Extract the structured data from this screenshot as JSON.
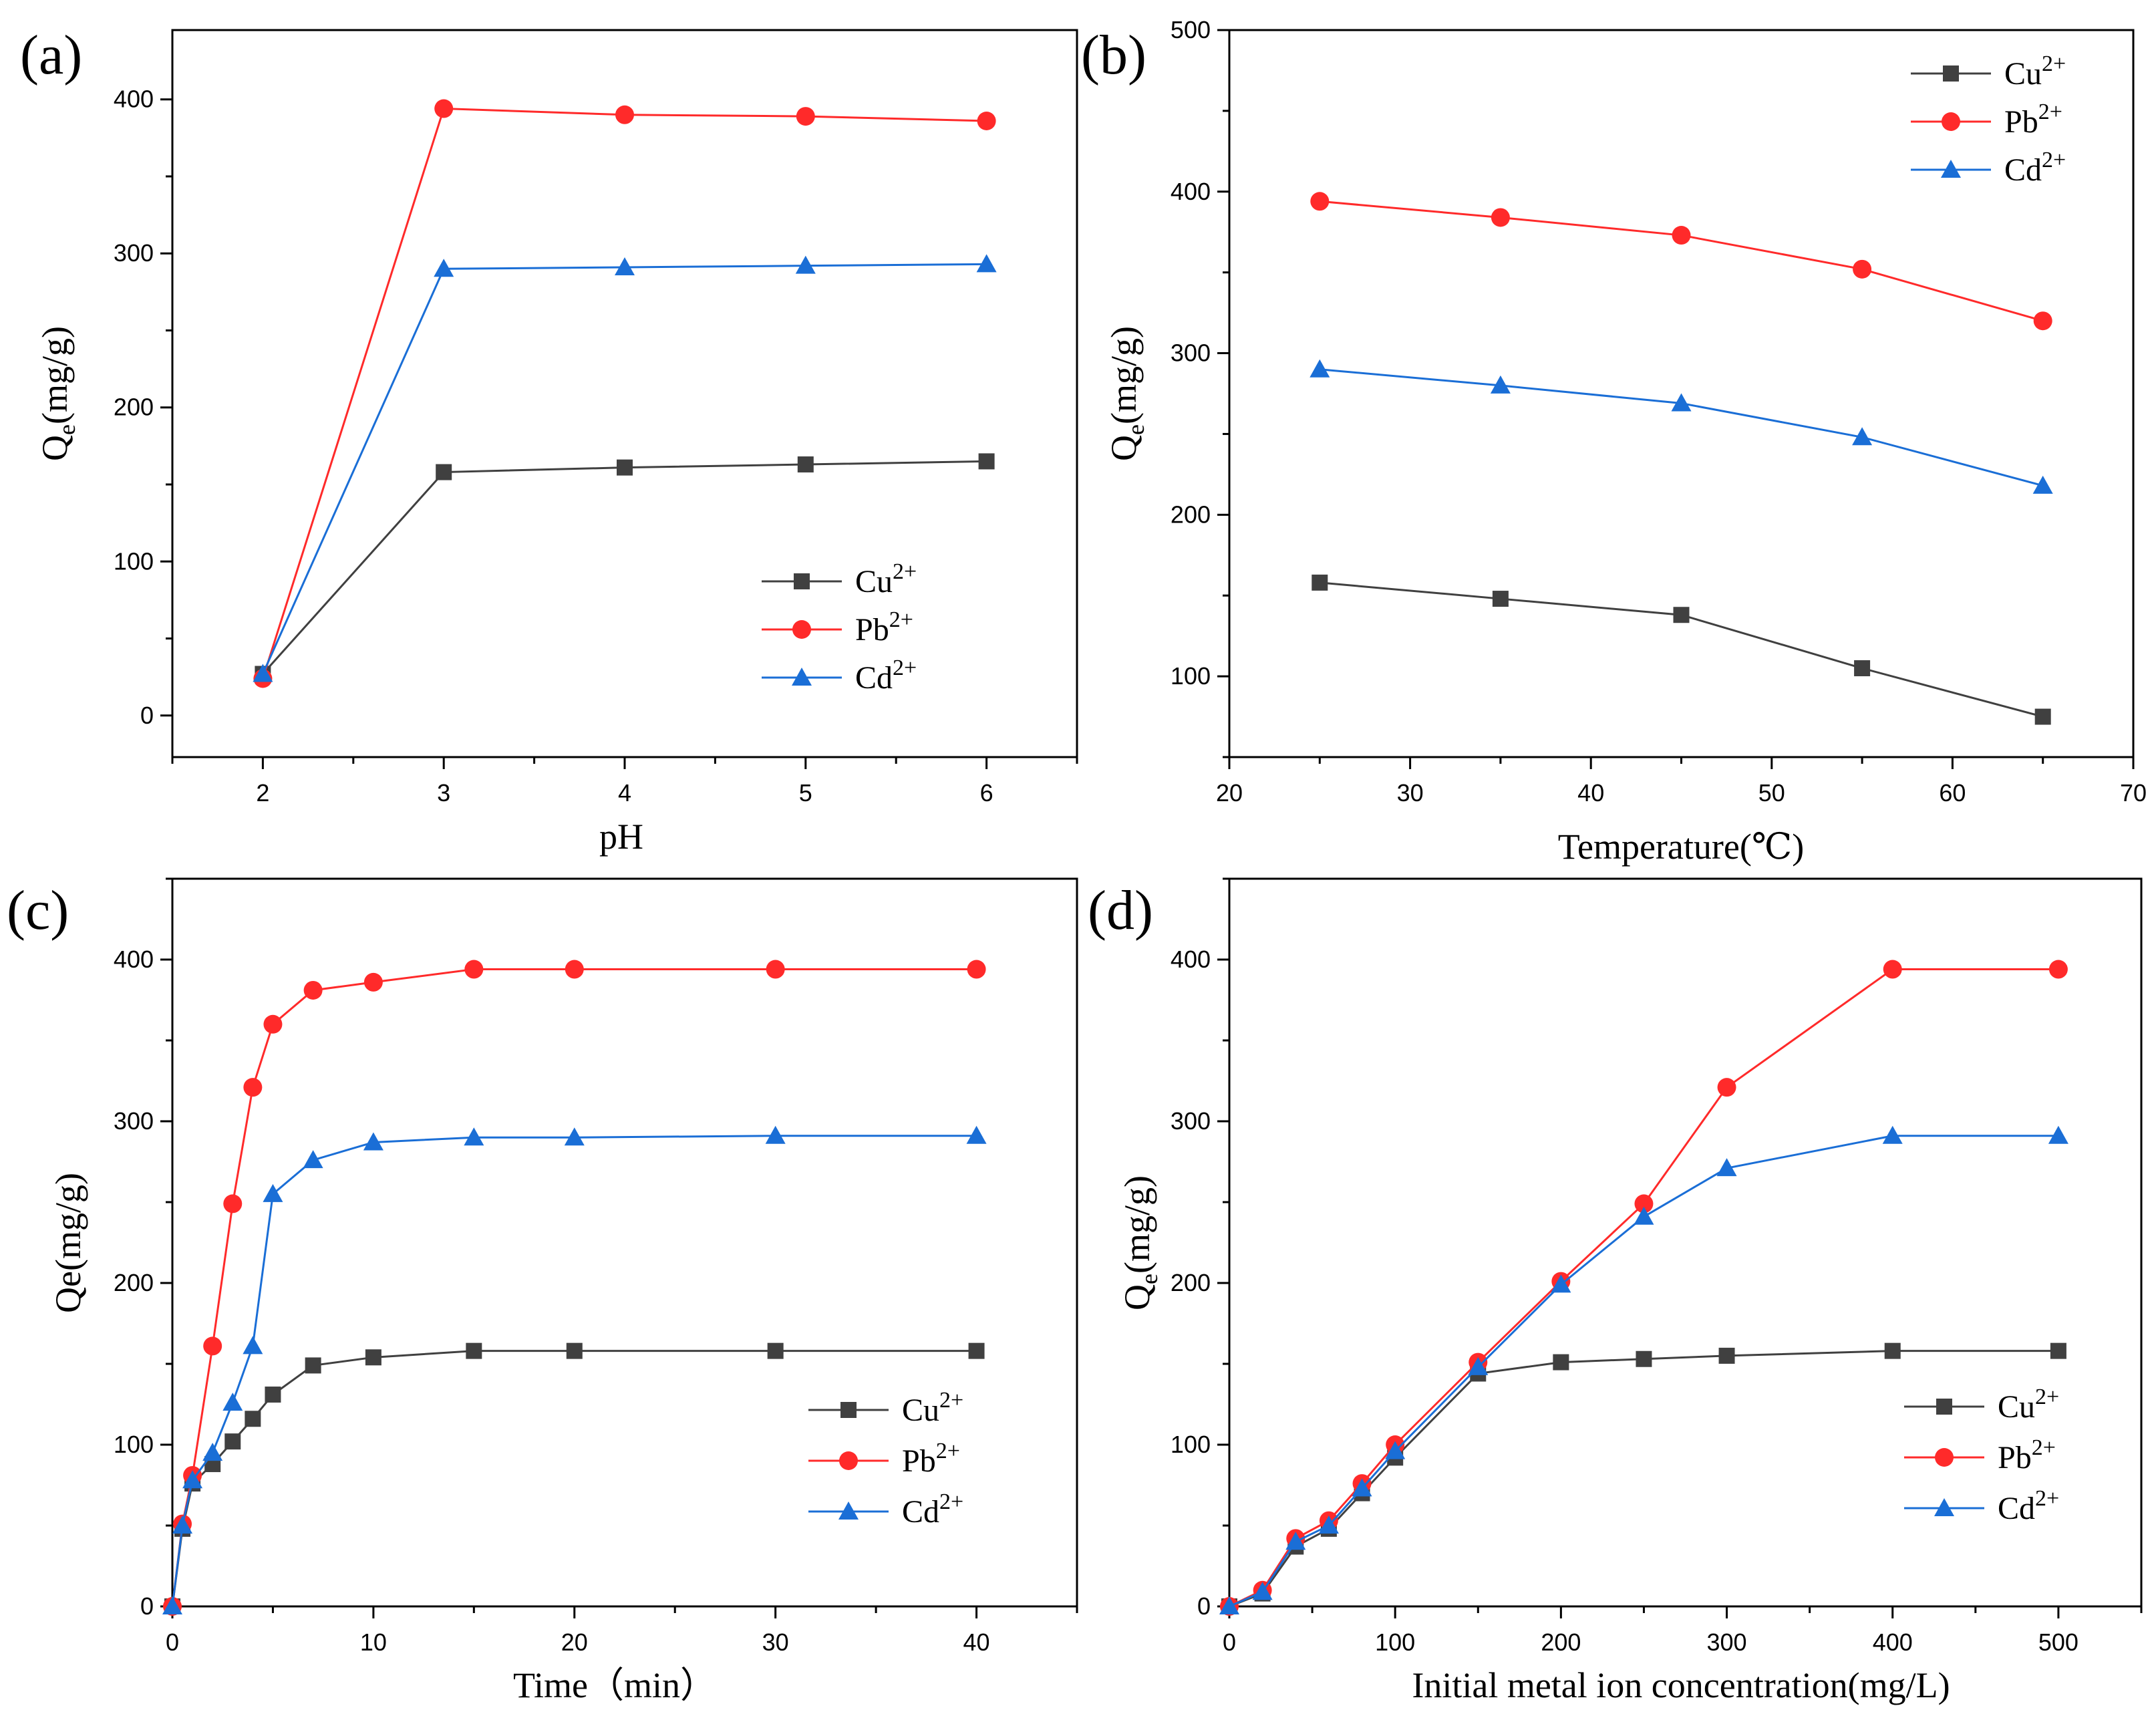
{
  "chart_data": [
    {
      "type": "line",
      "panel": "(a)",
      "xlabel": "pH",
      "ylabel": "Q_e(mg/g)",
      "ylabel_main": "Q",
      "ylabel_sub": "e",
      "ylabel_rest": "(mg/g)",
      "xlim": [
        1.5,
        6.5
      ],
      "ylim": [
        -27,
        445
      ],
      "xticks": [
        2,
        3,
        4,
        5,
        6
      ],
      "xticks_labels": [
        "2",
        "3",
        "4",
        "5",
        "6"
      ],
      "yticks": [
        0,
        100,
        200,
        300,
        400
      ],
      "yticks_labels": [
        "0",
        "100",
        "200",
        "300",
        "400"
      ],
      "legend_position": "bottom-right",
      "x": [
        2,
        3,
        4,
        5,
        6
      ],
      "series": [
        {
          "name": "Cu",
          "sup": "2+",
          "color": "#404040",
          "marker": "square",
          "values": [
            27,
            158,
            161,
            163,
            165
          ]
        },
        {
          "name": "Pb",
          "sup": "2+",
          "color": "#ff2a2a",
          "marker": "circle",
          "values": [
            24,
            394,
            390,
            389,
            386
          ]
        },
        {
          "name": "Cd",
          "sup": "2+",
          "color": "#1a6ed6",
          "marker": "triangle",
          "values": [
            27,
            290,
            291,
            292,
            293
          ]
        }
      ]
    },
    {
      "type": "line",
      "panel": "(b)",
      "xlabel": "Temperature(℃)",
      "ylabel": "Q_e(mg/g)",
      "ylabel_main": "Q",
      "ylabel_sub": "e",
      "ylabel_rest": "(mg/g)",
      "xlim": [
        20,
        70
      ],
      "ylim": [
        50,
        500
      ],
      "xticks": [
        20,
        30,
        40,
        50,
        60,
        70
      ],
      "xticks_labels": [
        "20",
        "30",
        "40",
        "50",
        "60",
        "70"
      ],
      "yticks": [
        100,
        200,
        300,
        400,
        500
      ],
      "yticks_labels": [
        "100",
        "200",
        "300",
        "400",
        "500"
      ],
      "legend_position": "top-right",
      "x": [
        25,
        35,
        45,
        55,
        65
      ],
      "series": [
        {
          "name": "Cu",
          "sup": "2+",
          "color": "#404040",
          "marker": "square",
          "values": [
            158,
            148,
            138,
            105,
            75
          ]
        },
        {
          "name": "Pb",
          "sup": "2+",
          "color": "#ff2a2a",
          "marker": "circle",
          "values": [
            394,
            384,
            373,
            352,
            320
          ]
        },
        {
          "name": "Cd",
          "sup": "2+",
          "color": "#1a6ed6",
          "marker": "triangle",
          "values": [
            290,
            280,
            269,
            248,
            218
          ]
        }
      ]
    },
    {
      "type": "line",
      "panel": "(c)",
      "xlabel": "Time（min）",
      "ylabel": "Qe(mg/g)",
      "ylabel_main": "Qe(mg/g)",
      "ylabel_sub": "",
      "ylabel_rest": "",
      "xlim": [
        0,
        45
      ],
      "ylim": [
        0,
        450
      ],
      "xticks": [
        0,
        10,
        20,
        30,
        40
      ],
      "xticks_labels": [
        "0",
        "10",
        "20",
        "30",
        "40"
      ],
      "yticks": [
        0,
        100,
        200,
        300,
        400
      ],
      "yticks_labels": [
        "0",
        "100",
        "200",
        "300",
        "400"
      ],
      "legend_position": "bottom-right",
      "x": [
        0,
        0.5,
        1,
        2,
        3,
        4,
        5,
        7,
        10,
        15,
        20,
        30,
        40
      ],
      "series": [
        {
          "name": "Cu",
          "sup": "2+",
          "color": "#404040",
          "marker": "square",
          "values": [
            0,
            48,
            76,
            88,
            102,
            116,
            131,
            149,
            154,
            158,
            158,
            158,
            158
          ]
        },
        {
          "name": "Pb",
          "sup": "2+",
          "color": "#ff2a2a",
          "marker": "circle",
          "values": [
            0,
            51,
            81,
            161,
            249,
            321,
            360,
            381,
            386,
            394,
            394,
            394,
            394
          ]
        },
        {
          "name": "Cd",
          "sup": "2+",
          "color": "#1a6ed6",
          "marker": "triangle",
          "values": [
            0,
            50,
            78,
            95,
            126,
            161,
            255,
            276,
            287,
            290,
            290,
            291,
            291
          ]
        }
      ]
    },
    {
      "type": "line",
      "panel": "(d)",
      "xlabel": "Initial metal ion concentration(mg/L)",
      "ylabel": "Q_e(mg/g)",
      "ylabel_main": "Q",
      "ylabel_sub": "e",
      "ylabel_rest": "(mg/g)",
      "xlim": [
        0,
        550
      ],
      "ylim": [
        0,
        450
      ],
      "xticks": [
        0,
        100,
        200,
        300,
        400,
        500
      ],
      "xticks_labels": [
        "0",
        "100",
        "200",
        "300",
        "400",
        "500"
      ],
      "yticks": [
        0,
        100,
        200,
        300,
        400
      ],
      "yticks_labels": [
        "0",
        "100",
        "200",
        "300",
        "400"
      ],
      "legend_position": "bottom-right",
      "x": [
        0,
        20,
        40,
        60,
        80,
        100,
        150,
        200,
        250,
        300,
        400,
        500
      ],
      "series": [
        {
          "name": "Cu",
          "sup": "2+",
          "color": "#404040",
          "marker": "square",
          "values": [
            0,
            8,
            37,
            48,
            70,
            92,
            144,
            151,
            153,
            155,
            158,
            158
          ]
        },
        {
          "name": "Pb",
          "sup": "2+",
          "color": "#ff2a2a",
          "marker": "circle",
          "values": [
            0,
            10,
            42,
            53,
            76,
            100,
            151,
            201,
            249,
            321,
            394,
            394
          ]
        },
        {
          "name": "Cd",
          "sup": "2+",
          "color": "#1a6ed6",
          "marker": "triangle",
          "values": [
            0,
            9,
            40,
            50,
            73,
            96,
            148,
            199,
            241,
            271,
            291,
            291
          ]
        }
      ]
    }
  ]
}
